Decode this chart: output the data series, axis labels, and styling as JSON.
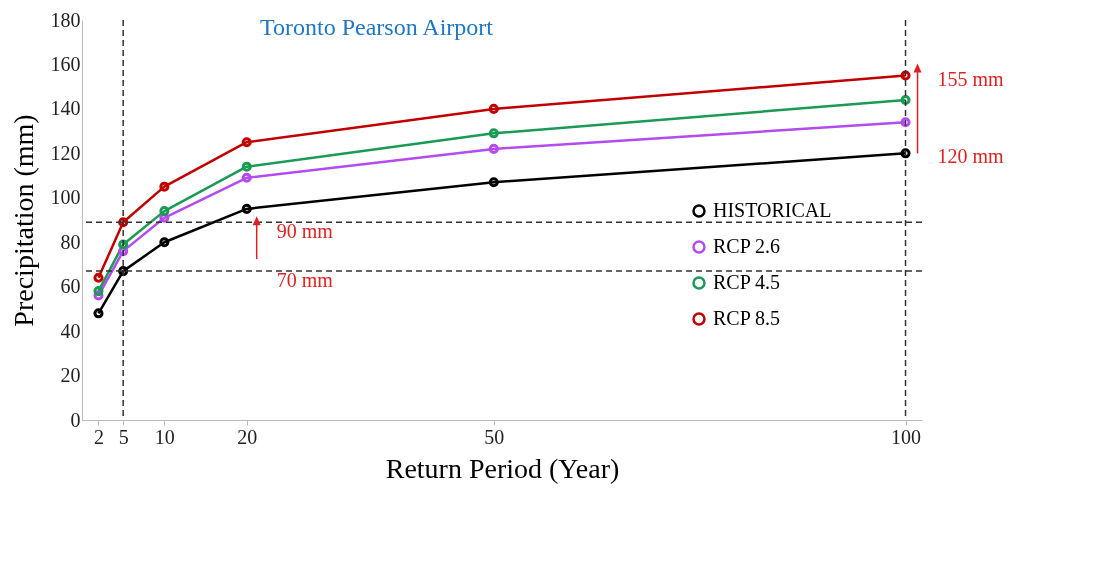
{
  "chart_data": {
    "type": "line",
    "title": "Toronto Pearson Airport",
    "xlabel": "Return Period (Year)",
    "ylabel": "Precipitation (mm)",
    "x": [
      2,
      5,
      10,
      20,
      50,
      100
    ],
    "series": [
      {
        "name": "HISTORICAL",
        "color": "#000000",
        "values": [
          48,
          67,
          80,
          95,
          107,
          120
        ]
      },
      {
        "name": "RCP 2.6",
        "color": "#b44bf0",
        "values": [
          56,
          76,
          91,
          109,
          122,
          134
        ]
      },
      {
        "name": "RCP 4.5",
        "color": "#1a9a55",
        "values": [
          58,
          79,
          94,
          114,
          129,
          144
        ]
      },
      {
        "name": "RCP 8.5",
        "color": "#c00000",
        "values": [
          64,
          89,
          105,
          125,
          140,
          155
        ]
      }
    ],
    "xlim": [
      0,
      102
    ],
    "xticks": [
      2,
      5,
      10,
      20,
      50,
      100
    ],
    "ylim": [
      0,
      180
    ],
    "yticks": [
      0,
      20,
      40,
      60,
      80,
      100,
      120,
      140,
      160,
      180
    ],
    "ref_lines": [
      {
        "axis": "y",
        "value": 89,
        "label": "90 mm",
        "color": "#333333",
        "line_style": "dashed"
      },
      {
        "axis": "y",
        "value": 67,
        "label": "70 mm",
        "color": "#333333",
        "line_style": "dashed"
      },
      {
        "axis": "x",
        "value": 5,
        "color": "#333333",
        "line_style": "dashed"
      },
      {
        "axis": "x",
        "value": 100,
        "color": "#333333",
        "line_style": "dashed"
      }
    ],
    "annotations": [
      {
        "text": "155 mm",
        "x": 100,
        "y": 155
      },
      {
        "text": "120 mm",
        "x": 100,
        "y": 120
      }
    ],
    "legend": "bottom right",
    "marker": "circle",
    "line_style": "solid"
  }
}
